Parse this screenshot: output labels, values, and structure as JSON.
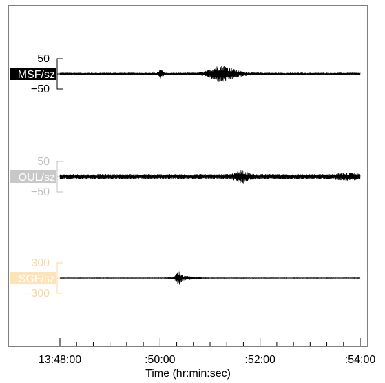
{
  "chart_data": {
    "type": "line",
    "xlabel": "Time (hr:min:sec)",
    "x_ticks": [
      "13:48:00",
      ":50:00",
      ":52:00",
      ":54:00"
    ],
    "x_tick_values_sec": [
      0,
      120,
      240,
      360
    ],
    "xlim_sec": [
      0,
      360
    ],
    "grid": false,
    "series": [
      {
        "name": "MSF/sz",
        "color": "#000000",
        "label_bg": "#000000",
        "label_fg": "#ffffff",
        "scale_color": "#000000",
        "ylim": [
          -50,
          50
        ],
        "y_ticks": [
          "50",
          "−50"
        ],
        "noise_amp": 4,
        "events": [
          {
            "t": 121,
            "amp": 12,
            "width": 3
          },
          {
            "t": 192,
            "amp": 16,
            "width": 14
          },
          {
            "t": 200,
            "amp": 10,
            "width": 20
          }
        ]
      },
      {
        "name": "OUL/sz",
        "color": "#000000",
        "label_bg": "#c8c8c8",
        "label_fg": "#ffffff",
        "scale_color": "#c0c0c0",
        "ylim": [
          -50,
          50
        ],
        "y_ticks": [
          "50",
          "−50"
        ],
        "noise_amp": 9,
        "events": [
          {
            "t": 218,
            "amp": 14,
            "width": 8
          },
          {
            "t": 345,
            "amp": 4,
            "width": 15
          }
        ]
      },
      {
        "name": "SGF/sz",
        "color": "#000000",
        "label_bg": "#fde3b6",
        "label_fg": "#ffffff",
        "scale_color": "#f8d8a0",
        "ylim": [
          -300,
          300
        ],
        "y_ticks": [
          "300",
          "−300"
        ],
        "noise_amp": 4,
        "events": [
          {
            "t": 142,
            "amp": 110,
            "width": 4
          },
          {
            "t": 150,
            "amp": 40,
            "width": 12
          }
        ]
      }
    ]
  }
}
